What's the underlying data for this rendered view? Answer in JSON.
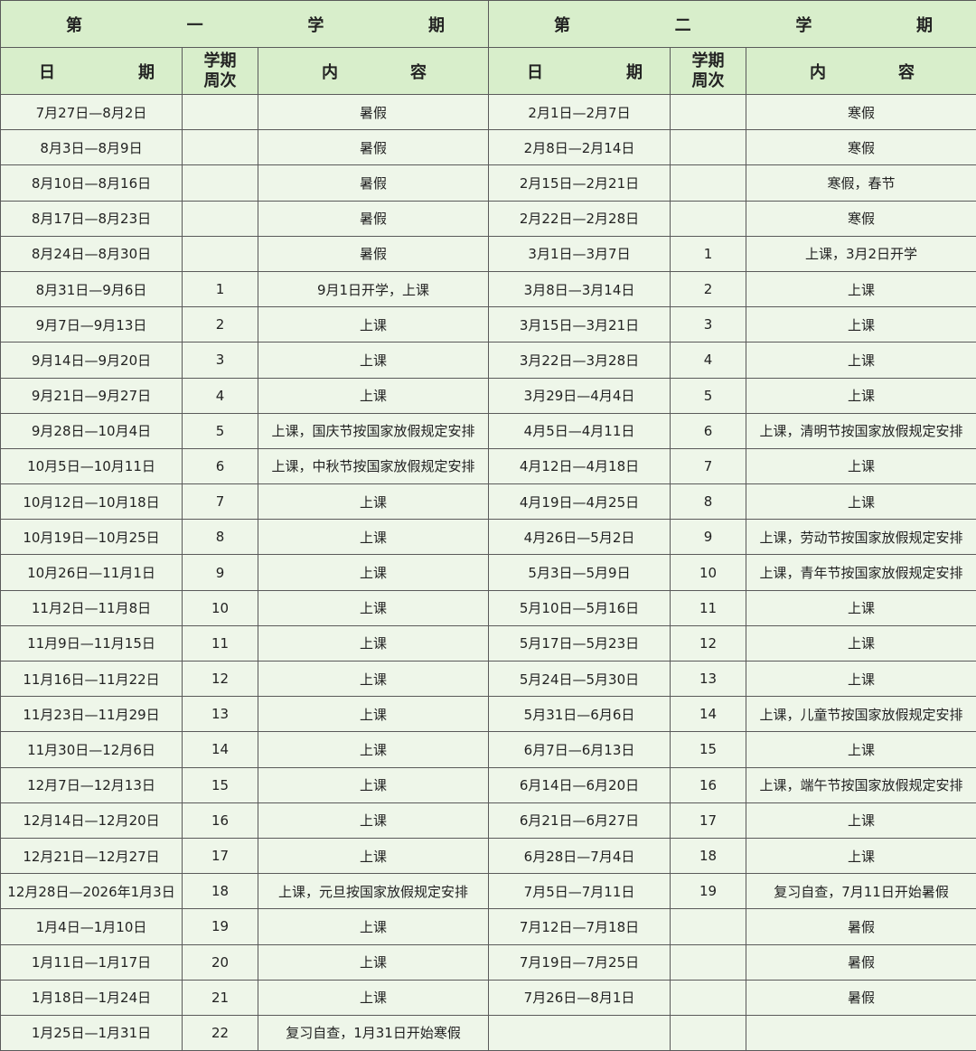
{
  "header": {
    "semesters": [
      "第一学期",
      "第二学期"
    ],
    "columns": [
      "日期",
      "学期周次",
      "内容",
      "日期",
      "学期周次",
      "内容"
    ]
  },
  "table": {
    "rows": [
      [
        "7月27日—8月2日",
        null,
        "暑假",
        "2月1日—2月7日",
        null,
        "寒假"
      ],
      [
        "8月3日—8月9日",
        null,
        "暑假",
        "2月8日—2月14日",
        null,
        "寒假"
      ],
      [
        "8月10日—8月16日",
        null,
        "暑假",
        "2月15日—2月21日",
        null,
        "寒假，春节"
      ],
      [
        "8月17日—8月23日",
        null,
        "暑假",
        "2月22日—2月28日",
        null,
        "寒假"
      ],
      [
        "8月24日—8月30日",
        null,
        "暑假",
        "3月1日—3月7日",
        1,
        "上课，3月2日开学"
      ],
      [
        "8月31日—9月6日",
        1,
        "9月1日开学，上课",
        "3月8日—3月14日",
        2,
        "上课"
      ],
      [
        "9月7日—9月13日",
        2,
        "上课",
        "3月15日—3月21日",
        3,
        "上课"
      ],
      [
        "9月14日—9月20日",
        3,
        "上课",
        "3月22日—3月28日",
        4,
        "上课"
      ],
      [
        "9月21日—9月27日",
        4,
        "上课",
        "3月29日—4月4日",
        5,
        "上课"
      ],
      [
        "9月28日—10月4日",
        5,
        "上课，国庆节按国家放假规定安排",
        "4月5日—4月11日",
        6,
        "上课，清明节按国家放假规定安排"
      ],
      [
        "10月5日—10月11日",
        6,
        "上课，中秋节按国家放假规定安排",
        "4月12日—4月18日",
        7,
        "上课"
      ],
      [
        "10月12日—10月18日",
        7,
        "上课",
        "4月19日—4月25日",
        8,
        "上课"
      ],
      [
        "10月19日—10月25日",
        8,
        "上课",
        "4月26日—5月2日",
        9,
        "上课，劳动节按国家放假规定安排"
      ],
      [
        "10月26日—11月1日",
        9,
        "上课",
        "5月3日—5月9日",
        10,
        "上课，青年节按国家放假规定安排"
      ],
      [
        "11月2日—11月8日",
        10,
        "上课",
        "5月10日—5月16日",
        11,
        "上课"
      ],
      [
        "11月9日—11月15日",
        11,
        "上课",
        "5月17日—5月23日",
        12,
        "上课"
      ],
      [
        "11月16日—11月22日",
        12,
        "上课",
        "5月24日—5月30日",
        13,
        "上课"
      ],
      [
        "11月23日—11月29日",
        13,
        "上课",
        "5月31日—6月6日",
        14,
        "上课，儿童节按国家放假规定安排"
      ],
      [
        "11月30日—12月6日",
        14,
        "上课",
        "6月7日—6月13日",
        15,
        "上课"
      ],
      [
        "12月7日—12月13日",
        15,
        "上课",
        "6月14日—6月20日",
        16,
        "上课，端午节按国家放假规定安排"
      ],
      [
        "12月14日—12月20日",
        16,
        "上课",
        "6月21日—6月27日",
        17,
        "上课"
      ],
      [
        "12月21日—12月27日",
        17,
        "上课",
        "6月28日—7月4日",
        18,
        "上课"
      ],
      [
        "12月28日—2026年1月3日",
        18,
        "上课，元旦按国家放假规定安排",
        "7月5日—7月11日",
        19,
        "复习自查，7月11日开始暑假"
      ],
      [
        "1月4日—1月10日",
        19,
        "上课",
        "7月12日—7月18日",
        null,
        "暑假"
      ],
      [
        "1月11日—1月17日",
        20,
        "上课",
        "7月19日—7月25日",
        null,
        "暑假"
      ],
      [
        "1月18日—1月24日",
        21,
        "上课",
        "7月26日—8月1日",
        null,
        "暑假"
      ],
      [
        "1月25日—1月31日",
        22,
        "复习自查，1月31日开始寒假",
        null,
        null,
        null
      ]
    ]
  }
}
